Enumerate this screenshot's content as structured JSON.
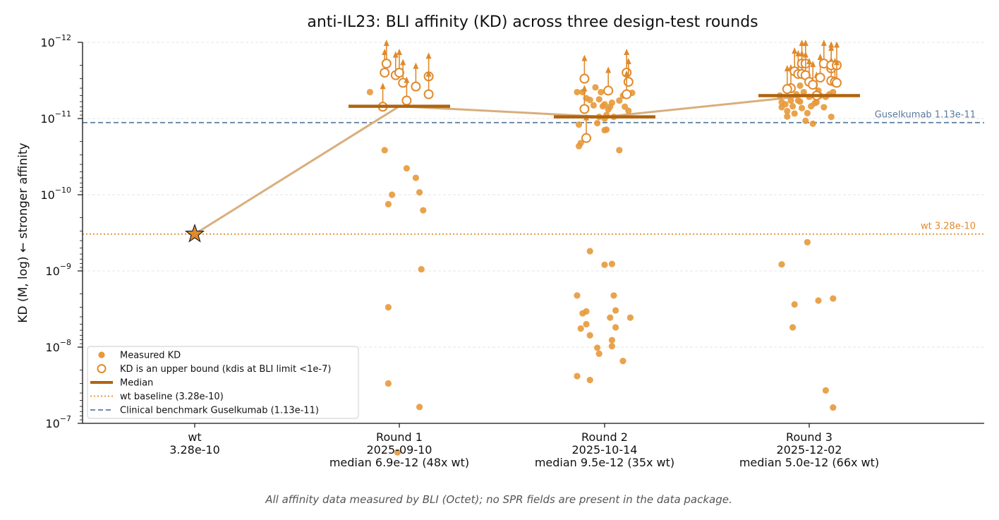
{
  "chart_data": {
    "type": "scatter",
    "title": "anti-IL23: BLI affinity (KD) across three design-test rounds",
    "ylabel": "KD (M, log)   ← stronger affinity",
    "yscale": "log",
    "yaxis_inverted": true,
    "ylim": [
      1e-07,
      1e-12
    ],
    "y_ticks": [
      {
        "value": 1e-12,
        "base": "10",
        "exp": "−12"
      },
      {
        "value": 1e-11,
        "base": "10",
        "exp": "−11"
      },
      {
        "value": 1e-10,
        "base": "10",
        "exp": "−10"
      },
      {
        "value": 1e-09,
        "base": "10",
        "exp": "−9"
      },
      {
        "value": 1e-08,
        "base": "10",
        "exp": "−8"
      },
      {
        "value": 1e-07,
        "base": "10",
        "exp": "−7"
      }
    ],
    "grid": true,
    "legend_position": "bottom-left",
    "categories": [
      {
        "name": "wt",
        "lines": [
          "wt",
          "3.28e-10"
        ]
      },
      {
        "name": "Round 1",
        "lines": [
          "Round 1",
          "2025-09-10",
          "median 6.9e-12 (48x wt)"
        ]
      },
      {
        "name": "Round 2",
        "lines": [
          "Round 2",
          "2025-10-14",
          "median 9.5e-12 (35x wt)"
        ]
      },
      {
        "name": "Round 3",
        "lines": [
          "Round 3",
          "2025-12-02",
          "median 5.0e-12 (66x wt)"
        ]
      }
    ],
    "wt_point": {
      "category": "wt",
      "kd": 3.28e-10
    },
    "median_trend": [
      3.28e-10,
      6.9e-12,
      9.5e-12,
      5e-12
    ],
    "reference_lines": [
      {
        "name": "wt baseline (3.28e-10)",
        "label": "wt 3.28e-10",
        "value": 3.28e-10,
        "style": "dotted",
        "color": "#e08a2c"
      },
      {
        "name": "Clinical benchmark Guselkumab (1.13e-11)",
        "label": "Guselkumab 1.13e-11",
        "value": 1.13e-11,
        "style": "dashed",
        "color": "#5a7a9c"
      }
    ],
    "series": [
      {
        "name": "Round 1",
        "median": 6.9e-12,
        "measured": [
          [
            -0.16,
            4.5e-12
          ],
          [
            -0.08,
            2.6e-11
          ],
          [
            -0.06,
            1.33e-10
          ],
          [
            -0.04,
            1e-10
          ],
          [
            0.04,
            4.5e-11
          ],
          [
            0.09,
            6e-11
          ],
          [
            0.11,
            9.3e-11
          ],
          [
            0.13,
            1.6e-10
          ],
          [
            -0.06,
            3e-09
          ],
          [
            0.12,
            9.5e-10
          ],
          [
            -0.06,
            3e-08
          ],
          [
            0.11,
            6.1e-08
          ],
          [
            -0.01,
            2.4e-07
          ]
        ],
        "upper_bounds": [
          [
            -0.09,
            7e-12
          ],
          [
            -0.08,
            2.5e-12
          ],
          [
            -0.07,
            1.9e-12
          ],
          [
            -0.02,
            2.7e-12
          ],
          [
            0.0,
            2.5e-12
          ],
          [
            0.02,
            3.4e-12
          ],
          [
            0.04,
            5.8e-12
          ],
          [
            0.09,
            3.8e-12
          ],
          [
            0.16,
            2.8e-12
          ],
          [
            0.16,
            4.8e-12
          ]
        ]
      },
      {
        "name": "Round 2",
        "median": 9.5e-12,
        "measured": [
          [
            -0.15,
            4.5e-12
          ],
          [
            -0.14,
            1.2e-11
          ],
          [
            -0.13,
            2.1e-11
          ],
          [
            -0.12,
            4.5e-12
          ],
          [
            -0.1,
            5.4e-12
          ],
          [
            -0.1,
            7.3e-12
          ],
          [
            -0.08,
            5.7e-12
          ],
          [
            -0.06,
            6.7e-12
          ],
          [
            -0.05,
            3.9e-12
          ],
          [
            -0.04,
            1.15e-11
          ],
          [
            -0.03,
            9.5e-12
          ],
          [
            -0.03,
            5.6e-12
          ],
          [
            -0.02,
            4.5e-12
          ],
          [
            -0.01,
            6.9e-12
          ],
          [
            0.0,
            6.5e-12
          ],
          [
            0.0,
            1e-11
          ],
          [
            0.01,
            1.4e-11
          ],
          [
            0.01,
            9e-12
          ],
          [
            0.02,
            7.6e-12
          ],
          [
            0.03,
            7e-12
          ],
          [
            0.04,
            6.2e-12
          ],
          [
            0.05,
            9.5e-12
          ],
          [
            0.08,
            5.8e-12
          ],
          [
            0.1,
            5e-12
          ],
          [
            0.11,
            7e-12
          ],
          [
            0.12,
            4.8e-12
          ],
          [
            0.13,
            7.9e-12
          ],
          [
            0.15,
            4.6e-12
          ],
          [
            0.0,
            1.42e-11
          ],
          [
            -0.14,
            2.3e-11
          ],
          [
            0.08,
            2.6e-11
          ],
          [
            -0.08,
            5.5e-10
          ],
          [
            0.0,
            8.3e-10
          ],
          [
            0.04,
            8.1e-10
          ],
          [
            -0.15,
            2.1e-09
          ],
          [
            -0.12,
            3.6e-09
          ],
          [
            -0.1,
            3.4e-09
          ],
          [
            -0.1,
            5e-09
          ],
          [
            -0.13,
            5.7e-09
          ],
          [
            -0.08,
            7e-09
          ],
          [
            0.05,
            2.1e-09
          ],
          [
            0.06,
            3.3e-09
          ],
          [
            0.03,
            4.1e-09
          ],
          [
            0.06,
            5.5e-09
          ],
          [
            0.14,
            4.1e-09
          ],
          [
            0.04,
            8.1e-09
          ],
          [
            0.04,
            9.7e-09
          ],
          [
            -0.04,
            1.02e-08
          ],
          [
            -0.03,
            1.22e-08
          ],
          [
            0.1,
            1.52e-08
          ],
          [
            -0.15,
            2.4e-08
          ],
          [
            -0.08,
            2.7e-08
          ]
        ],
        "upper_bounds": [
          [
            -0.11,
            3e-12
          ],
          [
            -0.11,
            7.5e-12
          ],
          [
            -0.1,
            1.8e-11
          ],
          [
            0.02,
            4.3e-12
          ],
          [
            0.12,
            2.5e-12
          ],
          [
            0.13,
            3.3e-12
          ],
          [
            0.12,
            4.8e-12
          ]
        ]
      },
      {
        "name": "Round 3",
        "median": 5e-12,
        "measured": [
          [
            -0.16,
            5e-12
          ],
          [
            -0.15,
            6.1e-12
          ],
          [
            -0.15,
            7.1e-12
          ],
          [
            -0.13,
            6.5e-12
          ],
          [
            -0.12,
            8e-12
          ],
          [
            -0.12,
            9.4e-12
          ],
          [
            -0.1,
            5.8e-12
          ],
          [
            -0.09,
            6.9e-12
          ],
          [
            -0.08,
            8.6e-12
          ],
          [
            -0.07,
            4.8e-12
          ],
          [
            -0.06,
            5.8e-12
          ],
          [
            -0.05,
            3.7e-12
          ],
          [
            -0.04,
            7.3e-12
          ],
          [
            -0.03,
            4.5e-12
          ],
          [
            -0.02,
            1.07e-11
          ],
          [
            -0.01,
            8.5e-12
          ],
          [
            0.0,
            5.2e-12
          ],
          [
            0.01,
            6.9e-12
          ],
          [
            0.02,
            1.17e-11
          ],
          [
            0.03,
            6.3e-12
          ],
          [
            0.05,
            4.3e-12
          ],
          [
            0.06,
            5e-12
          ],
          [
            0.08,
            7.1e-12
          ],
          [
            0.09,
            5.2e-12
          ],
          [
            0.11,
            4.8e-12
          ],
          [
            0.12,
            9.5e-12
          ],
          [
            0.13,
            4.5e-12
          ],
          [
            -0.05,
            6e-12
          ],
          [
            0.04,
            6.1e-12
          ],
          [
            -0.15,
            8.2e-10
          ],
          [
            -0.01,
            4.2e-10
          ],
          [
            -0.08,
            2.75e-09
          ],
          [
            0.05,
            2.45e-09
          ],
          [
            0.13,
            2.3e-09
          ],
          [
            -0.09,
            5.5e-09
          ],
          [
            0.09,
            3.7e-08
          ],
          [
            0.13,
            6.2e-08
          ]
        ],
        "upper_bounds": [
          [
            -0.1,
            4e-12
          ],
          [
            -0.08,
            2.4e-12
          ],
          [
            -0.06,
            2.6e-12
          ],
          [
            -0.04,
            1.9e-12
          ],
          [
            -0.04,
            2.6e-12
          ],
          [
            -0.02,
            1.9e-12
          ],
          [
            -0.02,
            2.7e-12
          ],
          [
            0.0,
            3.3e-12
          ],
          [
            0.02,
            3.6e-12
          ],
          [
            0.04,
            5e-12
          ],
          [
            0.06,
            2.9e-12
          ],
          [
            0.08,
            1.9e-12
          ],
          [
            0.12,
            2.2e-12
          ],
          [
            0.12,
            3.2e-12
          ],
          [
            0.12,
            2e-12
          ],
          [
            0.14,
            3.3e-12
          ],
          [
            0.15,
            2e-12
          ],
          [
            0.15,
            3.4e-12
          ],
          [
            -0.12,
            4.1e-12
          ]
        ]
      }
    ],
    "legend": [
      {
        "key": "measured",
        "label": "Measured KD"
      },
      {
        "key": "upper",
        "label": "KD is an upper bound (kdis at BLI limit <1e-7)"
      },
      {
        "key": "median",
        "label": "Median"
      },
      {
        "key": "wt",
        "label": "wt baseline (3.28e-10)"
      },
      {
        "key": "bench",
        "label": "Clinical benchmark Guselkumab (1.13e-11)"
      }
    ],
    "footnote": "All affinity data measured by BLI (Octet); no SPR fields are present in the data package."
  },
  "colors": {
    "point": "#e7993a",
    "upper": "#e08a2c",
    "median": "#b0640f",
    "trend": "#d9ae7c",
    "star": "#e08a2c",
    "bench": "#5a7a9c",
    "grid": "#e6e6e6"
  }
}
